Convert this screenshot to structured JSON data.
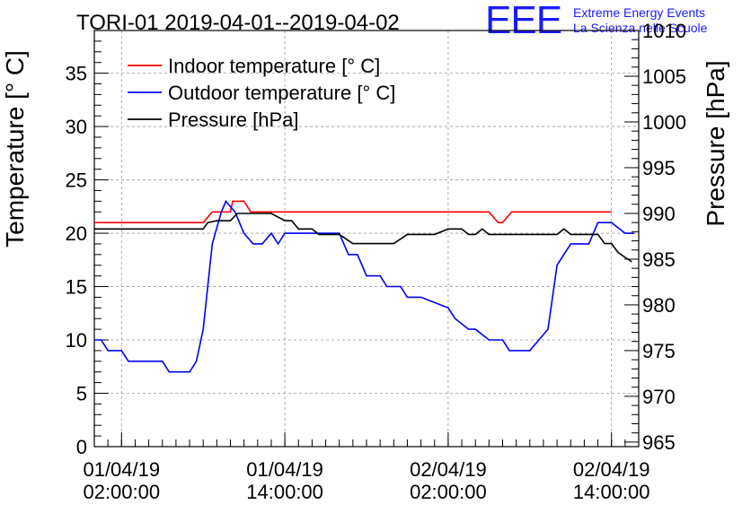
{
  "logo": {
    "mark": "EEE",
    "line1": "Extreme Energy Events",
    "line2": "La Scienza nelle Scuole"
  },
  "chart_data": {
    "type": "line",
    "title": "TORI-01 2019-04-01--2019-04-02",
    "ylabel": "Temperature [° C]",
    "y2label": "Pressure [hPa]",
    "xlabel": "",
    "ylim": [
      0,
      39
    ],
    "y2lim": [
      964.5,
      1010
    ],
    "xlim": [
      "2019-04-01 00:00",
      "2019-04-02 16:00"
    ],
    "grid": true,
    "legend": "top-left",
    "yticks": [
      0,
      5,
      10,
      15,
      20,
      25,
      30,
      35
    ],
    "y2ticks": [
      965,
      970,
      975,
      980,
      985,
      990,
      995,
      1000,
      1005,
      1010
    ],
    "xticks": [
      {
        "x": "2019-04-01 02:00",
        "label": [
          "01/04/19",
          "02:00:00"
        ]
      },
      {
        "x": "2019-04-01 14:00",
        "label": [
          "01/04/19",
          "14:00:00"
        ]
      },
      {
        "x": "2019-04-02 02:00",
        "label": [
          "02/04/19",
          "02:00:00"
        ]
      },
      {
        "x": "2019-04-02 14:00",
        "label": [
          "02/04/19",
          "14:00:00"
        ]
      }
    ],
    "series": [
      {
        "name": "Indoor temperature [° C]",
        "axis": "left",
        "color": "#ff0000",
        "points": [
          [
            "2019-04-01 00:00",
            21
          ],
          [
            "2019-04-01 08:00",
            21
          ],
          [
            "2019-04-01 08:40",
            22
          ],
          [
            "2019-04-01 10:00",
            22
          ],
          [
            "2019-04-01 10:10",
            23
          ],
          [
            "2019-04-01 11:00",
            23
          ],
          [
            "2019-04-01 11:30",
            22
          ],
          [
            "2019-04-02 05:00",
            22
          ],
          [
            "2019-04-02 05:40",
            21
          ],
          [
            "2019-04-02 06:00",
            21
          ],
          [
            "2019-04-02 06:40",
            22
          ],
          [
            "2019-04-02 14:00",
            22
          ]
        ]
      },
      {
        "name": "Outdoor temperature [° C]",
        "axis": "left",
        "color": "#0000ee",
        "points": [
          [
            "2019-04-01 00:00",
            10
          ],
          [
            "2019-04-01 00:30",
            10
          ],
          [
            "2019-04-01 01:00",
            9
          ],
          [
            "2019-04-01 02:00",
            9
          ],
          [
            "2019-04-01 02:30",
            8
          ],
          [
            "2019-04-01 05:00",
            8
          ],
          [
            "2019-04-01 05:30",
            7
          ],
          [
            "2019-04-01 07:00",
            7
          ],
          [
            "2019-04-01 07:30",
            8
          ],
          [
            "2019-04-01 08:00",
            11
          ],
          [
            "2019-04-01 08:40",
            19
          ],
          [
            "2019-04-01 09:20",
            22
          ],
          [
            "2019-04-01 09:40",
            23
          ],
          [
            "2019-04-01 10:20",
            22
          ],
          [
            "2019-04-01 11:00",
            20
          ],
          [
            "2019-04-01 11:40",
            19
          ],
          [
            "2019-04-01 12:20",
            19
          ],
          [
            "2019-04-01 13:00",
            20
          ],
          [
            "2019-04-01 13:30",
            19
          ],
          [
            "2019-04-01 14:00",
            20
          ],
          [
            "2019-04-01 17:00",
            20
          ],
          [
            "2019-04-01 18:00",
            20
          ],
          [
            "2019-04-01 18:40",
            18
          ],
          [
            "2019-04-01 19:20",
            18
          ],
          [
            "2019-04-01 20:00",
            16
          ],
          [
            "2019-04-01 21:00",
            16
          ],
          [
            "2019-04-01 21:30",
            15
          ],
          [
            "2019-04-01 22:30",
            15
          ],
          [
            "2019-04-01 23:00",
            14
          ],
          [
            "2019-04-02 00:00",
            14
          ],
          [
            "2019-04-02 02:00",
            13
          ],
          [
            "2019-04-02 02:30",
            12
          ],
          [
            "2019-04-02 03:30",
            11
          ],
          [
            "2019-04-02 04:00",
            11
          ],
          [
            "2019-04-02 05:00",
            10
          ],
          [
            "2019-04-02 06:00",
            10
          ],
          [
            "2019-04-02 06:30",
            9
          ],
          [
            "2019-04-02 08:00",
            9
          ],
          [
            "2019-04-02 08:40",
            10
          ],
          [
            "2019-04-02 09:20",
            11
          ],
          [
            "2019-04-02 10:00",
            17
          ],
          [
            "2019-04-02 11:00",
            19
          ],
          [
            "2019-04-02 12:20",
            19
          ],
          [
            "2019-04-02 13:00",
            21
          ],
          [
            "2019-04-02 14:00",
            21
          ],
          [
            "2019-04-02 15:00",
            20
          ],
          [
            "2019-04-02 15:40",
            20
          ]
        ]
      },
      {
        "name": "Pressure [hPa]",
        "axis": "right",
        "color": "#000000",
        "points": [
          [
            "2019-04-01 00:00",
            988.3
          ],
          [
            "2019-04-01 08:00",
            988.3
          ],
          [
            "2019-04-01 08:20",
            989.0
          ],
          [
            "2019-04-01 09:00",
            989.2
          ],
          [
            "2019-04-01 10:00",
            989.2
          ],
          [
            "2019-04-01 10:30",
            990.0
          ],
          [
            "2019-04-01 13:00",
            990.0
          ],
          [
            "2019-04-01 14:00",
            989.2
          ],
          [
            "2019-04-01 14:30",
            989.2
          ],
          [
            "2019-04-01 15:00",
            988.3
          ],
          [
            "2019-04-01 16:00",
            988.3
          ],
          [
            "2019-04-01 16:30",
            987.7
          ],
          [
            "2019-04-01 18:00",
            987.7
          ],
          [
            "2019-04-01 19:00",
            986.7
          ],
          [
            "2019-04-01 22:00",
            986.7
          ],
          [
            "2019-04-01 23:00",
            987.7
          ],
          [
            "2019-04-02 01:00",
            987.7
          ],
          [
            "2019-04-02 02:00",
            988.3
          ],
          [
            "2019-04-02 03:00",
            988.3
          ],
          [
            "2019-04-02 03:30",
            987.7
          ],
          [
            "2019-04-02 04:00",
            987.7
          ],
          [
            "2019-04-02 04:30",
            988.3
          ],
          [
            "2019-04-02 05:00",
            987.7
          ],
          [
            "2019-04-02 10:00",
            987.7
          ],
          [
            "2019-04-02 10:30",
            988.3
          ],
          [
            "2019-04-02 11:00",
            987.7
          ],
          [
            "2019-04-02 12:00",
            987.7
          ],
          [
            "2019-04-02 13:00",
            987.7
          ],
          [
            "2019-04-02 13:30",
            986.7
          ],
          [
            "2019-04-02 14:00",
            986.7
          ],
          [
            "2019-04-02 14:30",
            985.7
          ],
          [
            "2019-04-02 15:30",
            984.7
          ]
        ]
      }
    ]
  }
}
